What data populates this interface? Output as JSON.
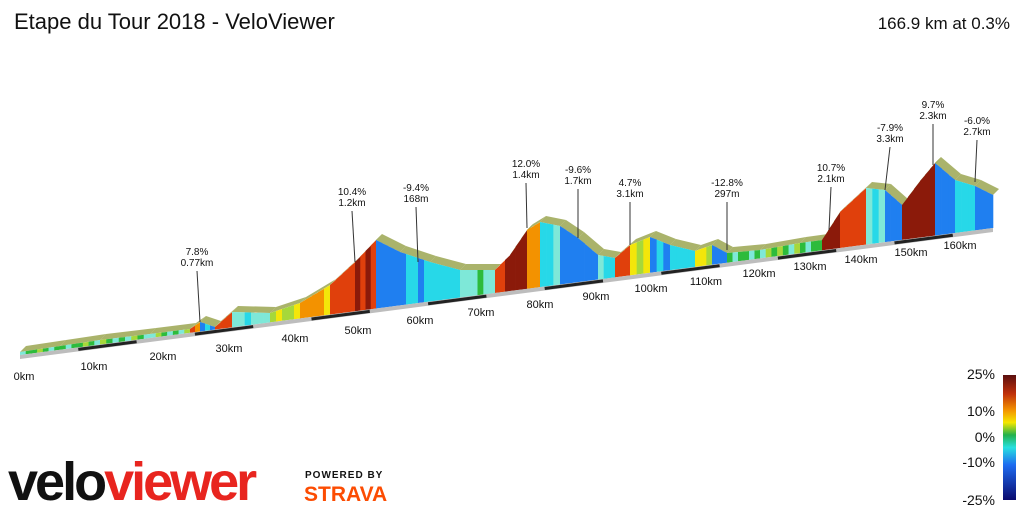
{
  "header": {
    "title": "Etape du Tour 2018 - VeloViewer",
    "summary": "166.9 km at 0.3%"
  },
  "annotations": [
    {
      "grade": "7.8%",
      "length": "0.77km"
    },
    {
      "grade": "10.4%",
      "length": "1.2km"
    },
    {
      "grade": "-9.4%",
      "length": "168m"
    },
    {
      "grade": "12.0%",
      "length": "1.4km"
    },
    {
      "grade": "-9.6%",
      "length": "1.7km"
    },
    {
      "grade": "4.7%",
      "length": "3.1km"
    },
    {
      "grade": "-12.8%",
      "length": "297m"
    },
    {
      "grade": "10.7%",
      "length": "2.1km"
    },
    {
      "grade": "-7.9%",
      "length": "3.3km"
    },
    {
      "grade": "9.7%",
      "length": "2.3km"
    },
    {
      "grade": "-6.0%",
      "length": "2.7km"
    }
  ],
  "distance_labels": [
    "0km",
    "10km",
    "20km",
    "30km",
    "40km",
    "50km",
    "60km",
    "70km",
    "80km",
    "90km",
    "100km",
    "110km",
    "120km",
    "130km",
    "140km",
    "150km",
    "160km"
  ],
  "legend": {
    "labels": [
      "25%",
      "10%",
      "0%",
      "-10%",
      "-25%"
    ]
  },
  "branding": {
    "logo_velo": "velo",
    "logo_viewer": "viewer",
    "powered_by": "POWERED BY",
    "partner": "STRAVA"
  }
}
